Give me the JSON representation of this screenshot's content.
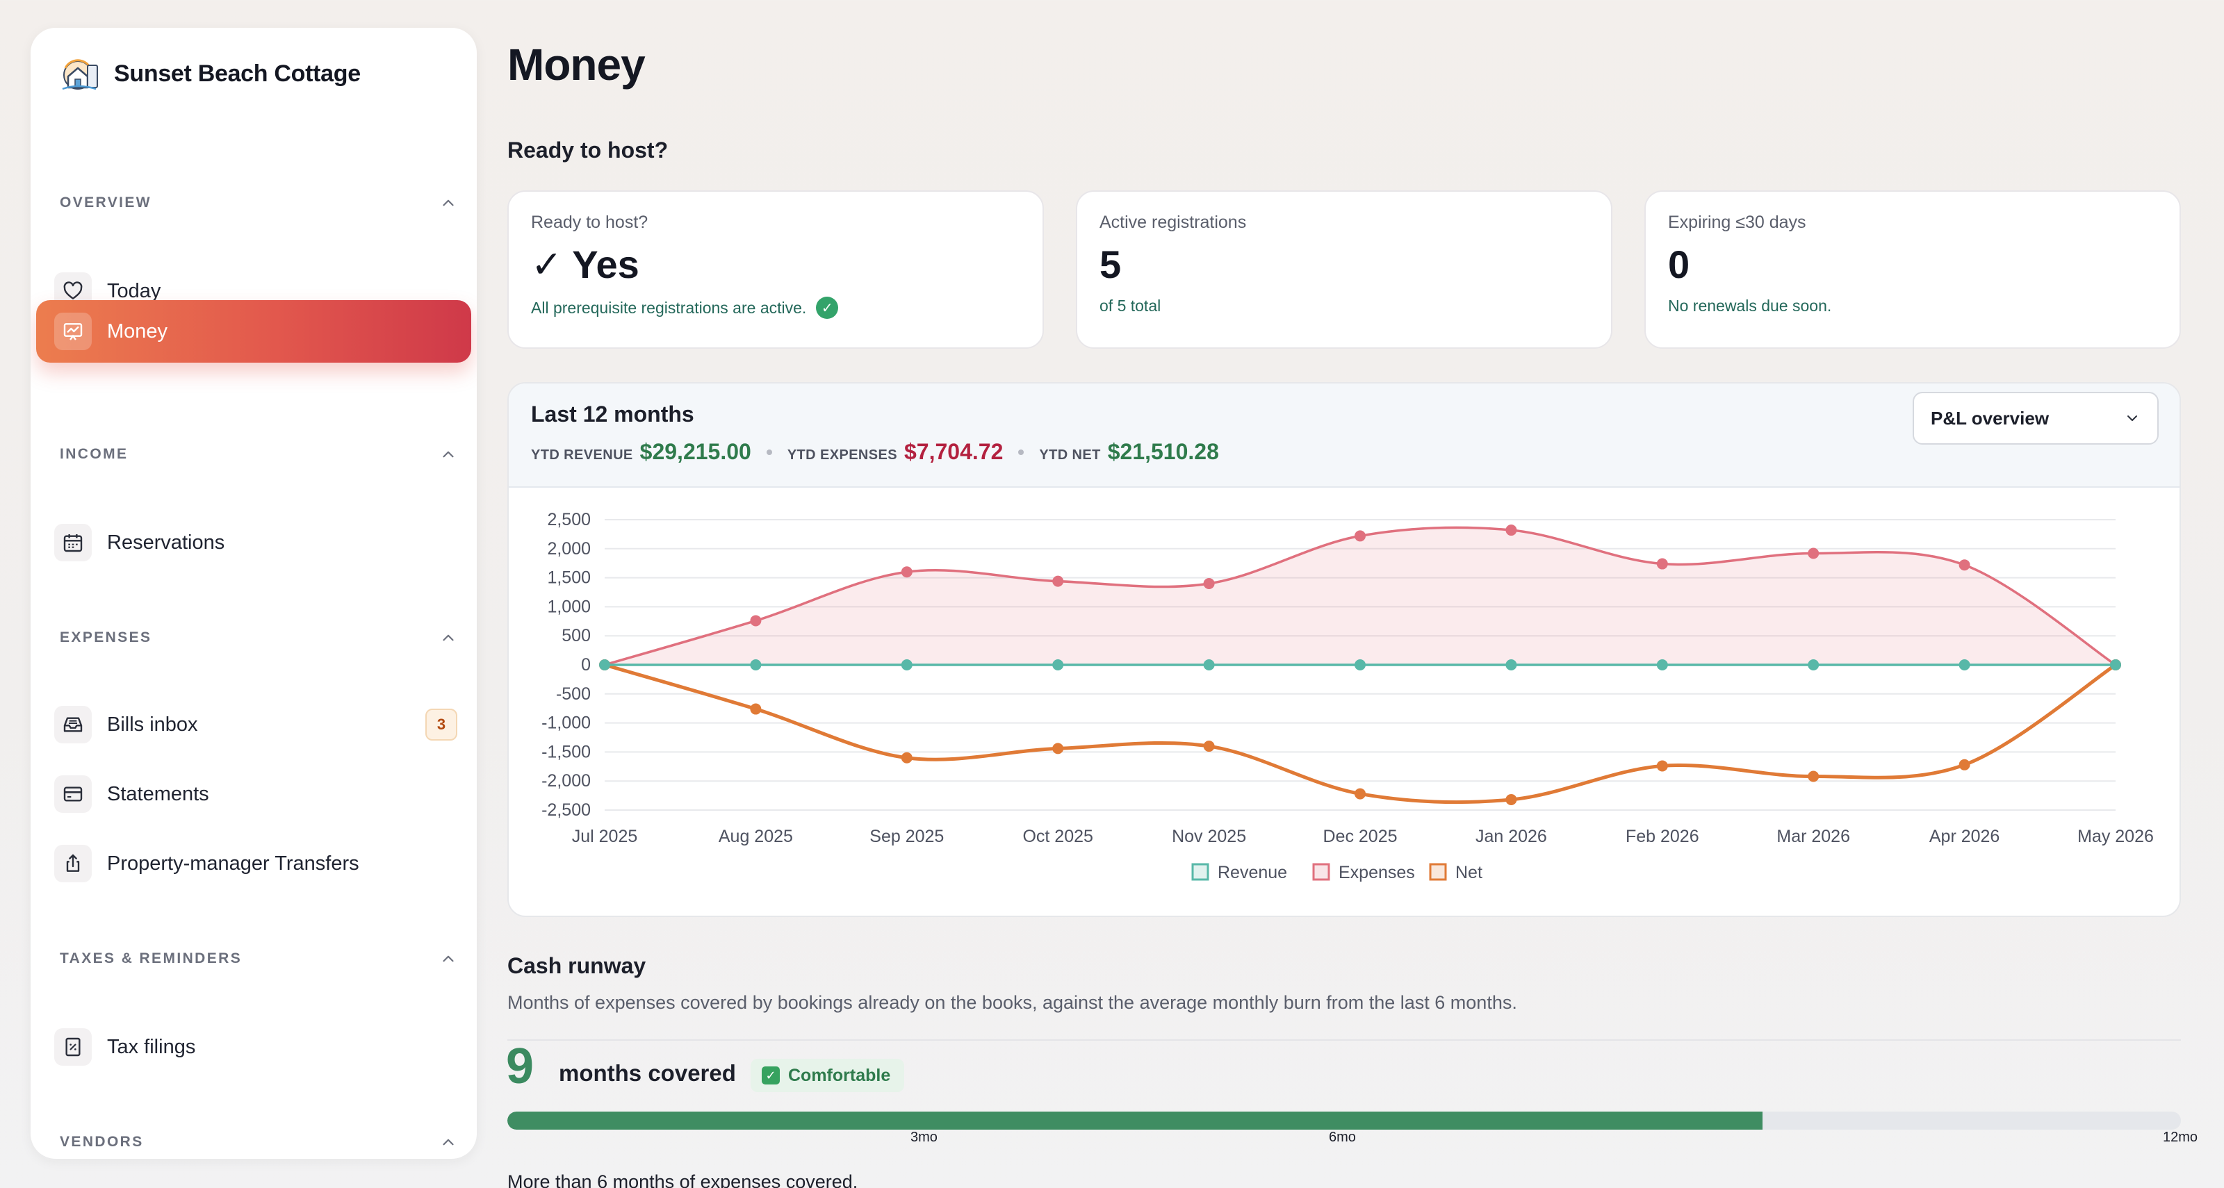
{
  "sidebar": {
    "brand": "Sunset Beach Cottage",
    "sections": [
      {
        "label": "OVERVIEW",
        "items": [
          {
            "label": "Today",
            "icon": "heart-icon"
          },
          {
            "label": "Money",
            "icon": "chart-icon",
            "active": true
          }
        ]
      },
      {
        "label": "INCOME",
        "items": [
          {
            "label": "Reservations",
            "icon": "calendar-icon"
          }
        ]
      },
      {
        "label": "EXPENSES",
        "items": [
          {
            "label": "Bills inbox",
            "icon": "inbox-icon",
            "badge": "3"
          },
          {
            "label": "Statements",
            "icon": "card-icon"
          },
          {
            "label": "Property-manager Transfers",
            "icon": "transfer-icon"
          }
        ]
      },
      {
        "label": "TAXES & REMINDERS",
        "items": [
          {
            "label": "Tax filings",
            "icon": "receipt-icon"
          }
        ]
      },
      {
        "label": "VENDORS",
        "items": []
      }
    ]
  },
  "main": {
    "title": "Money",
    "ready_heading": "Ready to host?",
    "cards": [
      {
        "label": "Ready to host?",
        "value": "Yes",
        "check": "✓",
        "note": "All prerequisite registrations are active."
      },
      {
        "label": "Active registrations",
        "value": "5",
        "note": "of 5 total"
      },
      {
        "label": "Expiring ≤30 days",
        "value": "0",
        "note": "No renewals due soon."
      }
    ]
  },
  "chart_panel": {
    "title": "Last 12 months",
    "ytd_revenue_label": "YTD REVENUE",
    "ytd_revenue": "$29,215.00",
    "ytd_expenses_label": "YTD EXPENSES",
    "ytd_expenses": "$7,704.72",
    "ytd_net_label": "YTD NET",
    "ytd_net": "$21,510.28",
    "view_select": "P&L overview"
  },
  "chart_data": {
    "type": "line",
    "categories": [
      "Jul 2025",
      "Aug 2025",
      "Sep 2025",
      "Oct 2025",
      "Nov 2025",
      "Dec 2025",
      "Jan 2026",
      "Feb 2026",
      "Mar 2026",
      "Apr 2026",
      "May 2026"
    ],
    "series": [
      {
        "name": "Revenue",
        "values": [
          0,
          0,
          0,
          0,
          0,
          0,
          0,
          0,
          0,
          0,
          0
        ],
        "color": "#58b8a8"
      },
      {
        "name": "Expenses",
        "values": [
          0,
          760,
          1600,
          1440,
          1400,
          2220,
          2320,
          1740,
          1920,
          1720,
          0
        ],
        "color": "#e0707e",
        "fill": "area"
      },
      {
        "name": "Net",
        "values": [
          0,
          -760,
          -1600,
          -1440,
          -1400,
          -2220,
          -2320,
          -1740,
          -1920,
          -1720,
          0
        ],
        "color": "#e07a36"
      }
    ],
    "yticks": [
      2500,
      2000,
      1500,
      1000,
      500,
      0,
      -500,
      -1000,
      -1500,
      -2000,
      -2500
    ],
    "ytick_labels": [
      "2,500",
      "2,000",
      "1,500",
      "1,000",
      "500",
      "0",
      "-500",
      "-1,000",
      "-1,500",
      "-2,000",
      "-2,500"
    ],
    "ylim": [
      -2500,
      2500
    ],
    "grid": true,
    "legend": "bottom-center"
  },
  "runway": {
    "title": "Cash runway",
    "description": "Months of expenses covered by bookings already on the books, against the average monthly burn from the last 6 months.",
    "months": "9",
    "months_label": "months covered",
    "status": "Comfortable",
    "progress_fraction": 0.75,
    "ticks": [
      "3mo",
      "6mo",
      "12mo"
    ],
    "footer": "More than 6 months of expenses covered."
  },
  "colors": {
    "accent": "#e2584d",
    "positive": "#2f7b4c",
    "negative": "#b3213f",
    "net_text": "#2f7b4c"
  }
}
